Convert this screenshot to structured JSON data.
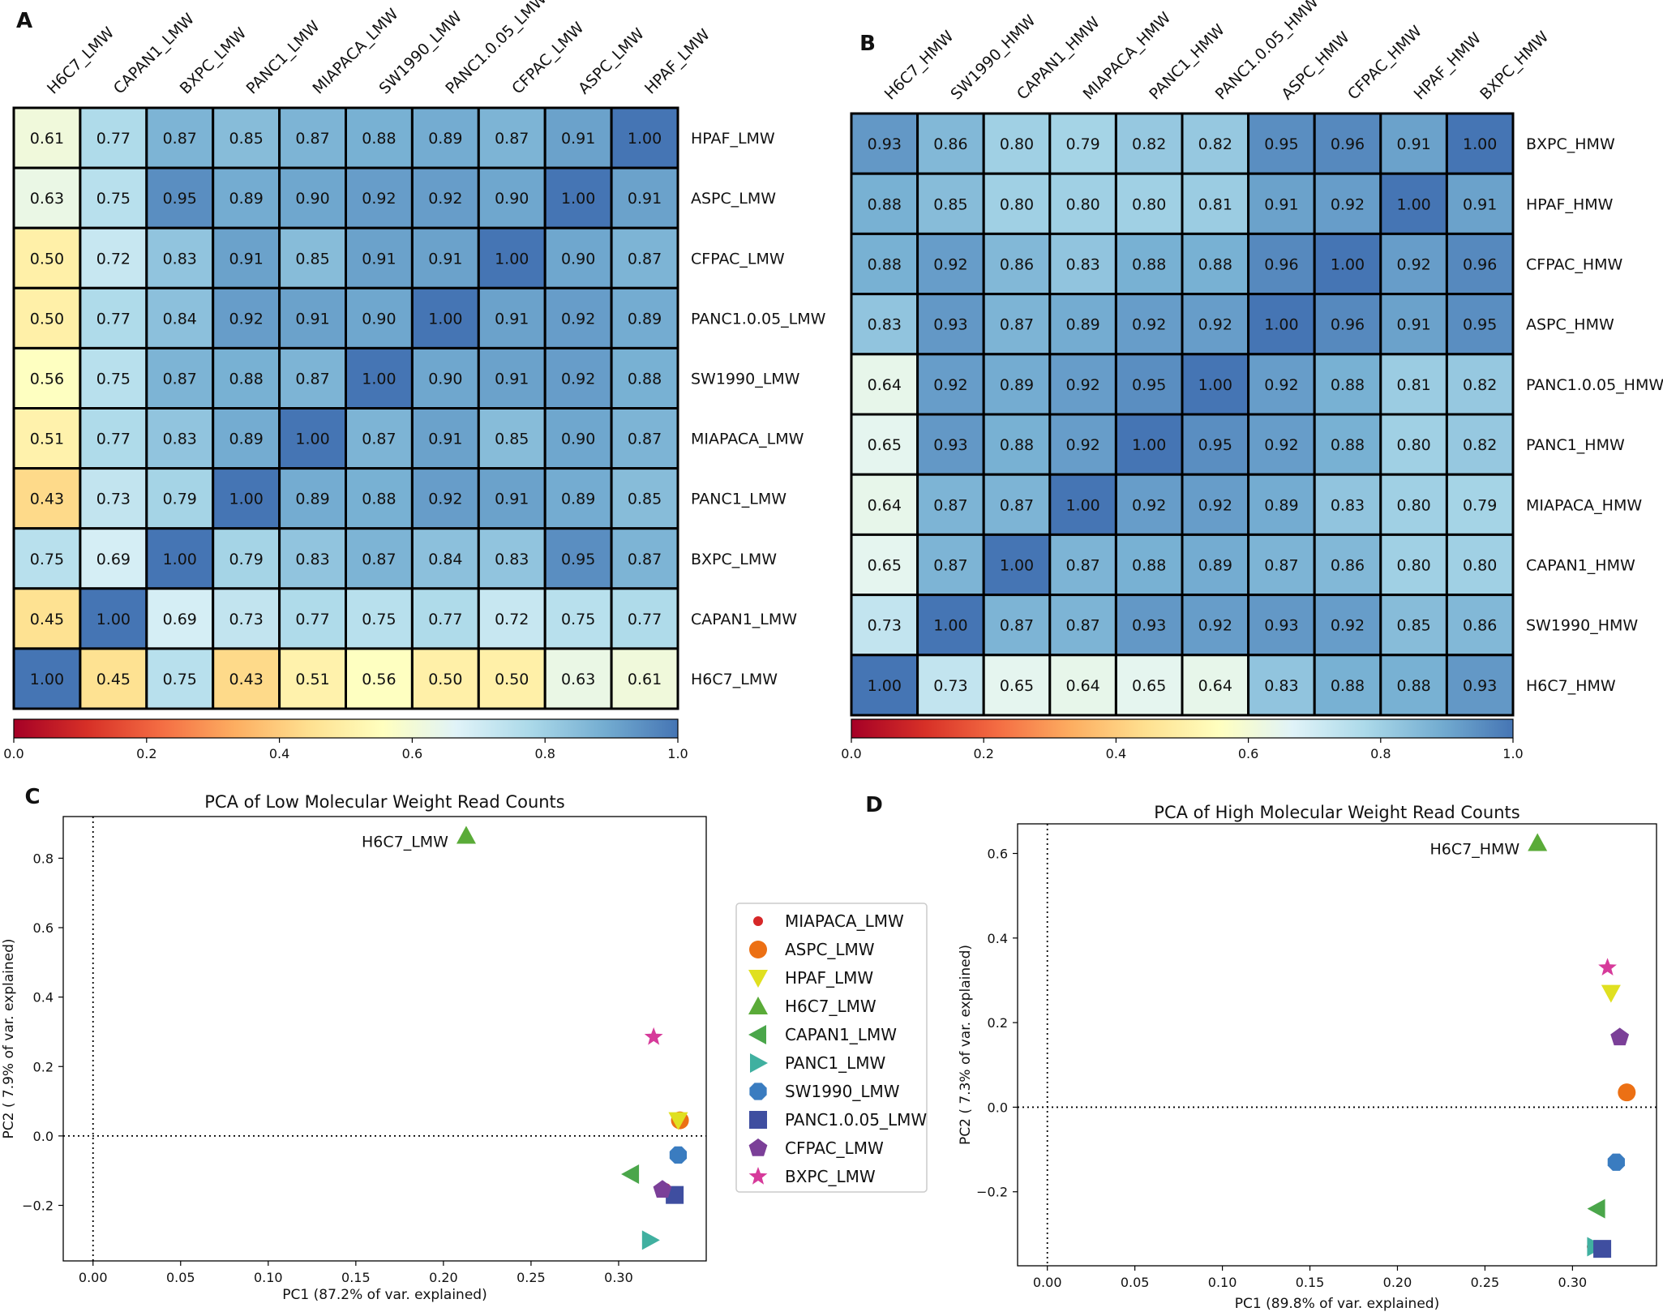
{
  "colorscale": {
    "stops": [
      "#a50026",
      "#d73027",
      "#f46d43",
      "#fdae61",
      "#fee090",
      "#ffffbf",
      "#e0f3f8",
      "#abd9e9",
      "#74add1",
      "#4575b4"
    ],
    "range": [
      0.0,
      1.0
    ]
  },
  "chart_data": [
    {
      "panel": "A",
      "type": "heatmap",
      "columns": [
        "H6C7_LMW",
        "CAPAN1_LMW",
        "BXPC_LMW",
        "PANC1_LMW",
        "MIAPACA_LMW",
        "SW1990_LMW",
        "PANC1.0.05_LMW",
        "CFPAC_LMW",
        "ASPC_LMW",
        "HPAF_LMW"
      ],
      "rows": [
        "HPAF_LMW",
        "ASPC_LMW",
        "CFPAC_LMW",
        "PANC1.0.05_LMW",
        "SW1990_LMW",
        "MIAPACA_LMW",
        "PANC1_LMW",
        "BXPC_LMW",
        "CAPAN1_LMW",
        "H6C7_LMW"
      ],
      "values": [
        [
          "0.61",
          "0.77",
          "0.87",
          "0.85",
          "0.87",
          "0.88",
          "0.89",
          "0.87",
          "0.91",
          "1.00"
        ],
        [
          "0.63",
          "0.75",
          "0.95",
          "0.89",
          "0.90",
          "0.92",
          "0.92",
          "0.90",
          "1.00",
          "0.91"
        ],
        [
          "0.50",
          "0.72",
          "0.83",
          "0.91",
          "0.85",
          "0.91",
          "0.91",
          "1.00",
          "0.90",
          "0.87"
        ],
        [
          "0.50",
          "0.77",
          "0.84",
          "0.92",
          "0.91",
          "0.90",
          "1.00",
          "0.91",
          "0.92",
          "0.89"
        ],
        [
          "0.56",
          "0.75",
          "0.87",
          "0.88",
          "0.87",
          "1.00",
          "0.90",
          "0.91",
          "0.92",
          "0.88"
        ],
        [
          "0.51",
          "0.77",
          "0.83",
          "0.89",
          "1.00",
          "0.87",
          "0.91",
          "0.85",
          "0.90",
          "0.87"
        ],
        [
          "0.43",
          "0.73",
          "0.79",
          "1.00",
          "0.89",
          "0.88",
          "0.92",
          "0.91",
          "0.89",
          "0.85"
        ],
        [
          "0.75",
          "0.69",
          "1.00",
          "0.79",
          "0.83",
          "0.87",
          "0.84",
          "0.83",
          "0.95",
          "0.87"
        ],
        [
          "0.45",
          "1.00",
          "0.69",
          "0.73",
          "0.77",
          "0.75",
          "0.77",
          "0.72",
          "0.75",
          "0.77"
        ],
        [
          "1.00",
          "0.45",
          "0.75",
          "0.43",
          "0.51",
          "0.56",
          "0.50",
          "0.50",
          "0.63",
          "0.61"
        ]
      ],
      "colorbar_ticks": [
        "0.0",
        "0.2",
        "0.4",
        "0.6",
        "0.8",
        "1.0"
      ],
      "colorbar_range": [
        0.0,
        1.0
      ]
    },
    {
      "panel": "B",
      "type": "heatmap",
      "columns": [
        "H6C7_HMW",
        "SW1990_HMW",
        "CAPAN1_HMW",
        "MIAPACA_HMW",
        "PANC1_HMW",
        "PANC1.0.05_HMW",
        "ASPC_HMW",
        "CFPAC_HMW",
        "HPAF_HMW",
        "BXPC_HMW"
      ],
      "rows": [
        "BXPC_HMW",
        "HPAF_HMW",
        "CFPAC_HMW",
        "ASPC_HMW",
        "PANC1.0.05_HMW",
        "PANC1_HMW",
        "MIAPACA_HMW",
        "CAPAN1_HMW",
        "SW1990_HMW",
        "H6C7_HMW"
      ],
      "values": [
        [
          "0.93",
          "0.86",
          "0.80",
          "0.79",
          "0.82",
          "0.82",
          "0.95",
          "0.96",
          "0.91",
          "1.00"
        ],
        [
          "0.88",
          "0.85",
          "0.80",
          "0.80",
          "0.80",
          "0.81",
          "0.91",
          "0.92",
          "1.00",
          "0.91"
        ],
        [
          "0.88",
          "0.92",
          "0.86",
          "0.83",
          "0.88",
          "0.88",
          "0.96",
          "1.00",
          "0.92",
          "0.96"
        ],
        [
          "0.83",
          "0.93",
          "0.87",
          "0.89",
          "0.92",
          "0.92",
          "1.00",
          "0.96",
          "0.91",
          "0.95"
        ],
        [
          "0.64",
          "0.92",
          "0.89",
          "0.92",
          "0.95",
          "1.00",
          "0.92",
          "0.88",
          "0.81",
          "0.82"
        ],
        [
          "0.65",
          "0.93",
          "0.88",
          "0.92",
          "1.00",
          "0.95",
          "0.92",
          "0.88",
          "0.80",
          "0.82"
        ],
        [
          "0.64",
          "0.87",
          "0.87",
          "1.00",
          "0.92",
          "0.92",
          "0.89",
          "0.83",
          "0.80",
          "0.79"
        ],
        [
          "0.65",
          "0.87",
          "1.00",
          "0.87",
          "0.88",
          "0.89",
          "0.87",
          "0.86",
          "0.80",
          "0.80"
        ],
        [
          "0.73",
          "1.00",
          "0.87",
          "0.87",
          "0.93",
          "0.92",
          "0.93",
          "0.92",
          "0.85",
          "0.86"
        ],
        [
          "1.00",
          "0.73",
          "0.65",
          "0.64",
          "0.65",
          "0.64",
          "0.83",
          "0.88",
          "0.88",
          "0.93"
        ]
      ],
      "colorbar_ticks": [
        "0.0",
        "0.2",
        "0.4",
        "0.6",
        "0.8",
        "1.0"
      ],
      "colorbar_range": [
        0.0,
        1.0
      ]
    },
    {
      "panel": "C",
      "type": "scatter",
      "title": "PCA of Low Molecular Weight Read Counts",
      "xlabel": "PC1 (87.2% of var. explained)",
      "ylabel": "PC2 ( 7.9% of var. explained)",
      "xlim": [
        -0.017,
        0.35
      ],
      "ylim": [
        -0.36,
        0.92
      ],
      "xticks": [
        "0.00",
        "0.05",
        "0.10",
        "0.15",
        "0.20",
        "0.25",
        "0.30"
      ],
      "yticks": [
        "−0.2",
        "0.0",
        "0.2",
        "0.4",
        "0.6",
        "0.8"
      ],
      "reference_lines": {
        "x": 0,
        "y": 0
      },
      "legend_position": "right",
      "annotation": {
        "text": "H6C7_LMW",
        "series": "H6C7_LMW"
      },
      "series": [
        {
          "name": "MIAPACA_LMW",
          "marker": "dot",
          "color": "#d62728",
          "x": 0.327,
          "y": -0.15
        },
        {
          "name": "ASPC_LMW",
          "marker": "circle",
          "color": "#ec7014",
          "x": 0.335,
          "y": 0.045
        },
        {
          "name": "HPAF_LMW",
          "marker": "triangle-down",
          "color": "#e0e020",
          "x": 0.334,
          "y": 0.045
        },
        {
          "name": "H6C7_LMW",
          "marker": "triangle-up",
          "color": "#5aab38",
          "x": 0.213,
          "y": 0.865
        },
        {
          "name": "CAPAN1_LMW",
          "marker": "triangle-left",
          "color": "#4aa64a",
          "x": 0.307,
          "y": -0.11
        },
        {
          "name": "PANC1_LMW",
          "marker": "triangle-right",
          "color": "#40b0a0",
          "x": 0.318,
          "y": -0.3
        },
        {
          "name": "SW1990_LMW",
          "marker": "octagon",
          "color": "#3a7cc0",
          "x": 0.334,
          "y": -0.055
        },
        {
          "name": "PANC1.0.05_LMW",
          "marker": "square",
          "color": "#3f4ea0",
          "x": 0.332,
          "y": -0.17
        },
        {
          "name": "CFPAC_LMW",
          "marker": "pentagon",
          "color": "#7b3f98",
          "x": 0.325,
          "y": -0.155
        },
        {
          "name": "BXPC_LMW",
          "marker": "star",
          "color": "#d63a9a",
          "x": 0.32,
          "y": 0.285
        }
      ]
    },
    {
      "panel": "D",
      "type": "scatter",
      "title": "PCA of High Molecular Weight Read Counts",
      "xlabel": "PC1 (89.8% of var. explained)",
      "ylabel": "PC2 ( 7.3% of var. explained)",
      "xlim": [
        -0.017,
        0.348
      ],
      "ylim": [
        -0.375,
        0.67
      ],
      "xticks": [
        "0.00",
        "0.05",
        "0.10",
        "0.15",
        "0.20",
        "0.25",
        "0.30"
      ],
      "yticks": [
        "−0.2",
        "0.0",
        "0.2",
        "0.4",
        "0.6"
      ],
      "reference_lines": {
        "x": 0,
        "y": 0
      },
      "annotation": {
        "text": "H6C7_HMW",
        "series": "H6C7_HMW"
      },
      "series": [
        {
          "name": "MIAPACA_HMW",
          "marker": "dot",
          "color": "#d62728",
          "x": 0.311,
          "y": -0.33
        },
        {
          "name": "ASPC_HMW",
          "marker": "circle",
          "color": "#ec7014",
          "x": 0.331,
          "y": 0.035
        },
        {
          "name": "HPAF_HMW",
          "marker": "triangle-down",
          "color": "#e0e020",
          "x": 0.322,
          "y": 0.27
        },
        {
          "name": "H6C7_HMW",
          "marker": "triangle-up",
          "color": "#5aab38",
          "x": 0.28,
          "y": 0.625
        },
        {
          "name": "CAPAN1_HMW",
          "marker": "triangle-left",
          "color": "#4aa64a",
          "x": 0.314,
          "y": -0.24
        },
        {
          "name": "PANC1_HMW",
          "marker": "triangle-right",
          "color": "#40b0a0",
          "x": 0.313,
          "y": -0.33
        },
        {
          "name": "SW1990_HMW",
          "marker": "octagon",
          "color": "#3a7cc0",
          "x": 0.325,
          "y": -0.13
        },
        {
          "name": "PANC1.0.05_HMW",
          "marker": "square",
          "color": "#3f4ea0",
          "x": 0.317,
          "y": -0.335
        },
        {
          "name": "CFPAC_HMW",
          "marker": "pentagon",
          "color": "#7b3f98",
          "x": 0.327,
          "y": 0.165
        },
        {
          "name": "BXPC_HMW",
          "marker": "star",
          "color": "#d63a9a",
          "x": 0.32,
          "y": 0.33
        }
      ]
    }
  ]
}
